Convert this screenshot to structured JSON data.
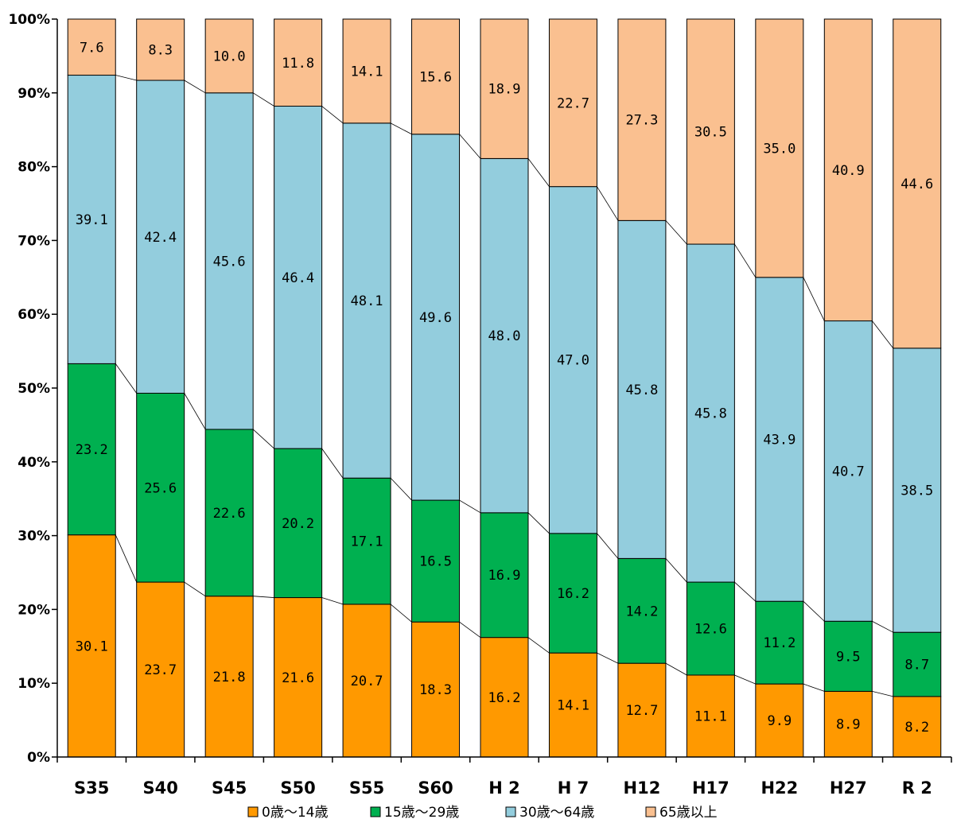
{
  "chart_data": {
    "type": "bar",
    "stacked": true,
    "normalized": true,
    "categories": [
      "S35",
      "S40",
      "S45",
      "S50",
      "S55",
      "S60",
      "H 2",
      "H 7",
      "H12",
      "H17",
      "H22",
      "H27",
      "R 2"
    ],
    "series": [
      {
        "name": "0歳～14歳",
        "color": "#ff9900",
        "values": [
          30.1,
          23.7,
          21.8,
          21.6,
          20.7,
          18.3,
          16.2,
          14.1,
          12.7,
          11.1,
          9.9,
          8.9,
          8.2
        ]
      },
      {
        "name": "15歳～29歳",
        "color": "#00b050",
        "values": [
          23.2,
          25.6,
          22.6,
          20.2,
          17.1,
          16.5,
          16.9,
          16.2,
          14.2,
          12.6,
          11.2,
          9.5,
          8.7
        ]
      },
      {
        "name": "30歳～64歳",
        "color": "#93cddd",
        "values": [
          39.1,
          42.4,
          45.6,
          46.4,
          48.1,
          49.6,
          48.0,
          47.0,
          45.8,
          45.8,
          43.9,
          40.7,
          38.5
        ]
      },
      {
        "name": "65歳以上",
        "color": "#fac090",
        "values": [
          7.6,
          8.3,
          10.0,
          11.8,
          14.1,
          15.6,
          18.9,
          22.7,
          27.3,
          30.5,
          35.0,
          40.9,
          44.6
        ]
      }
    ],
    "value_labels": [
      [
        "30.1",
        "23.7",
        "21.8",
        "21.6",
        "20.7",
        "18.3",
        "16.2",
        "14.1",
        "12.7",
        "11.1",
        "9.9",
        "8.9",
        "8.2"
      ],
      [
        "23.2",
        "25.6",
        "22.6",
        "20.2",
        "17.1",
        "16.5",
        "16.9",
        "16.2",
        "14.2",
        "12.6",
        "11.2",
        "9.5",
        "8.7"
      ],
      [
        "39.1",
        "42.4",
        "45.6",
        "46.4",
        "48.1",
        "49.6",
        "48.0",
        "47.0",
        "45.8",
        "45.8",
        "43.9",
        "40.7",
        "38.5"
      ],
      [
        "7.6",
        "8.3",
        "10.0",
        "11.8",
        "14.1",
        "15.6",
        "18.9",
        "22.7",
        "27.3",
        "30.5",
        "35.0",
        "40.9",
        "44.6"
      ]
    ],
    "yticks": [
      "0%",
      "10%",
      "20%",
      "30%",
      "40%",
      "50%",
      "60%",
      "70%",
      "80%",
      "90%",
      "100%"
    ],
    "ylim": [
      0,
      100
    ],
    "series_lines": true,
    "grid": false,
    "legend_position": "bottom",
    "title": "",
    "xlabel": "",
    "ylabel": ""
  }
}
